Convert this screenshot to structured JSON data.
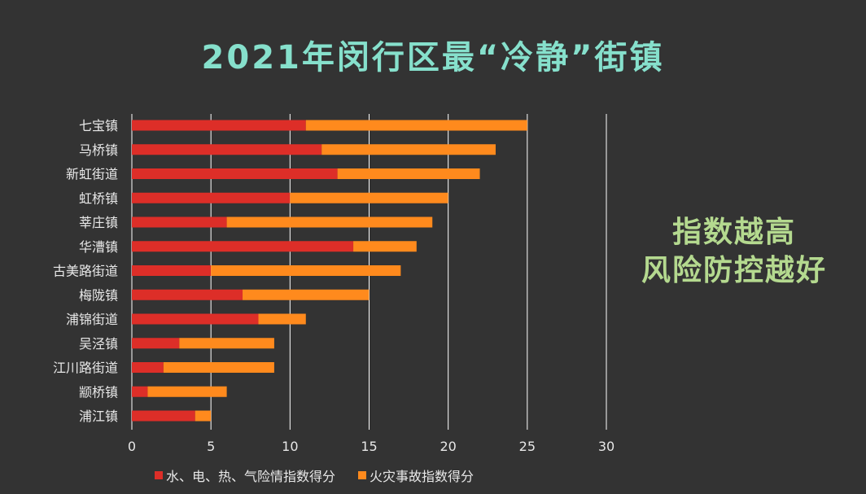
{
  "chart_data": {
    "type": "bar",
    "orientation": "horizontal",
    "stacked": true,
    "title": "2021年闵行区最“冷静”街镇",
    "annotation": "指数越高\n风险防控越好",
    "annotation_lines": [
      "指数越高",
      "风险防控越好"
    ],
    "categories": [
      "七宝镇",
      "马桥镇",
      "新虹街道",
      "虹桥镇",
      "莘庄镇",
      "华漕镇",
      "古美路街道",
      "梅陇镇",
      "浦锦街道",
      "吴泾镇",
      "江川路街道",
      "颛桥镇",
      "浦江镇"
    ],
    "series": [
      {
        "name": "水、电、热、气险情指数得分",
        "color": "#dd2e28",
        "values": [
          11,
          12,
          13,
          10,
          6,
          14,
          5,
          7,
          8,
          3,
          2,
          1,
          4
        ]
      },
      {
        "name": "火灾事故指数得分",
        "color": "#ff8a1d",
        "values": [
          14,
          11,
          9,
          10,
          13,
          4,
          12,
          8,
          3,
          6,
          7,
          5,
          1
        ]
      }
    ],
    "xlim": [
      0,
      30
    ],
    "xticks": [
      "0",
      "5",
      "10",
      "15",
      "20",
      "25",
      "30"
    ],
    "xlabel": "",
    "ylabel": "",
    "grid": true,
    "legend_position": "bottom",
    "colors": {
      "background": "#333333",
      "title": "#86e0cc",
      "annotation": "#b4d98f",
      "grid": "#ffffff",
      "text": "#e8e8e8"
    }
  }
}
